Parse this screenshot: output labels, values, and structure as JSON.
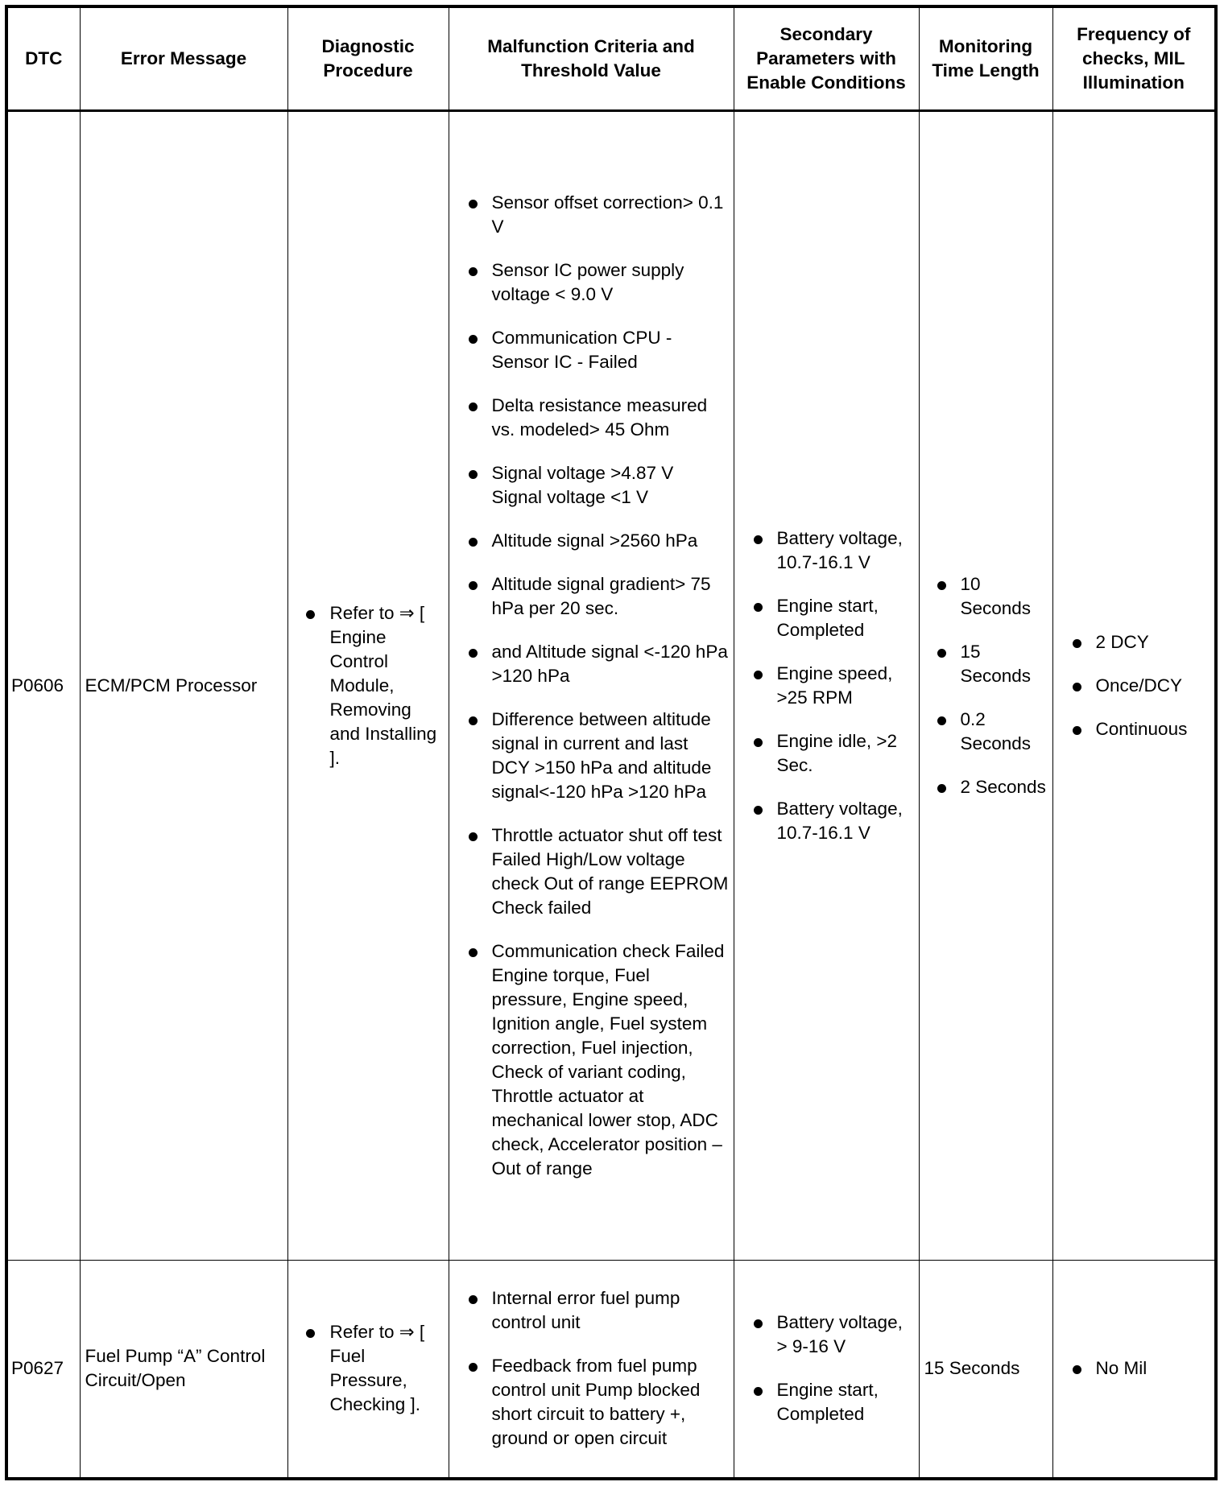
{
  "headers": [
    "DTC",
    "Error Message",
    "Diagnostic Procedure",
    "Malfunction Criteria and Threshold Value",
    "Secondary Parameters with Enable Conditions",
    "Monitoring Time Length",
    "Frequency of checks, MIL Illumination"
  ],
  "rows": [
    {
      "dtc": "P0606",
      "error": "ECM/PCM Processor",
      "procedure": [
        "Refer to ⇒ [ Engine Control Module, Removing and Installing ]."
      ],
      "criteria": [
        "Sensor offset correction> 0.1 V",
        "Sensor IC power supply voltage < 9.0 V",
        "Communication CPU - Sensor IC - Failed",
        "Delta resistance measured vs. modeled> 45 Ohm",
        "Signal voltage >4.87 V Signal voltage <1 V",
        "Altitude signal >2560 hPa",
        "Altitude signal gradient> 75 hPa per 20 sec.",
        "and Altitude signal <-120 hPa >120 hPa",
        "Difference between altitude signal in current and last DCY >150 hPa and altitude signal<-120 hPa >120 hPa",
        "Throttle actuator shut off test Failed High/Low voltage check Out of range EEPROM Check failed",
        "Communication check Failed Engine torque, Fuel pressure, Engine speed, Ignition angle, Fuel system correction, Fuel injection, Check of variant coding, Throttle actuator at mechanical lower stop, ADC check, Accelerator position – Out of range"
      ],
      "secondary": [
        "Battery voltage, 10.7-16.1 V",
        "Engine start, Completed",
        "Engine speed, >25 RPM",
        "Engine idle, >2 Sec.",
        "Battery voltage, 10.7-16.1 V"
      ],
      "monitoring": [
        "10 Seconds",
        "15 Seconds",
        "0.2 Seconds",
        "2 Seconds"
      ],
      "frequency": [
        "2 DCY",
        "Once/DCY",
        "Continuous"
      ]
    },
    {
      "dtc": "P0627",
      "error": "Fuel Pump “A” Control Circuit/Open",
      "procedure": [
        "Refer to ⇒ [ Fuel Pressure, Checking ]."
      ],
      "criteria": [
        "Internal error fuel pump control unit",
        "Feedback from fuel pump control unit Pump blocked short circuit to battery +, ground or open circuit"
      ],
      "secondary": [
        "Battery voltage, > 9-16 V",
        "Engine start, Completed"
      ],
      "monitoring_text": "15 Seconds",
      "frequency": [
        "No Mil"
      ]
    }
  ]
}
